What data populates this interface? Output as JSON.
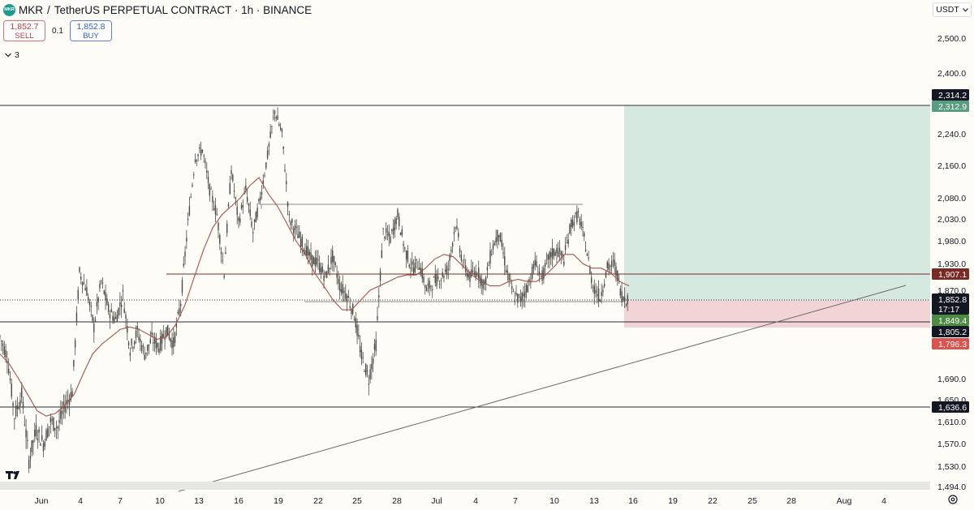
{
  "header": {
    "symbol": "MKR",
    "separator": "/",
    "title": "TetherUS PERPETUAL CONTRACT · 1h · BINANCE",
    "logo_text": "MKR"
  },
  "trade": {
    "sell_price": "1,852.7",
    "sell_label": "SELL",
    "quantity": "0.1",
    "buy_price": "1,852.8",
    "buy_label": "BUY"
  },
  "indicators_count": "3",
  "currency": "USDT",
  "icons": {
    "chevron_down": "chevron-down-icon",
    "settings": "settings-icon",
    "logo": "tradingview-logo"
  },
  "colors": {
    "background": "#fefcf6",
    "candle": "#4a4a44",
    "moving_average": "#a6514f",
    "take_profit_zone": "#d5e9e1",
    "stop_loss_zone": "#f2d3d6",
    "take_profit_label": "#5a9c80",
    "stop_label": "#d9534f",
    "entry_label": "#4d8b45",
    "resistance_label": "#7a2a26"
  },
  "chart_data": {
    "type": "candlestick",
    "title": "",
    "symbol": "MKR/USDT Perpetual",
    "timeframe": "1h",
    "price_axis": {
      "ticks": [
        "2,500.0",
        "2,400.0",
        "2,314.2",
        "2,240.0",
        "2,160.0",
        "2,080.0",
        "2,030.0",
        "1,980.0",
        "1,930.0",
        "1,870.0",
        "1,690.0",
        "1,650.0",
        "1,610.0",
        "1,570.0",
        "1,530.0",
        "1,494.0"
      ],
      "range": [
        1490,
        2540
      ]
    },
    "date_axis": {
      "ticks": [
        "Jun",
        "4",
        "7",
        "10",
        "13",
        "16",
        "19",
        "22",
        "25",
        "28",
        "Jul",
        "4",
        "7",
        "10",
        "13",
        "16",
        "19",
        "22",
        "25",
        "28",
        "Aug",
        "4"
      ]
    },
    "price_labels": [
      {
        "name": "resistance-high",
        "value": "2,314.2"
      },
      {
        "name": "take-profit",
        "value": "2,312.9"
      },
      {
        "name": "resistance-mid",
        "value": "1,907.1"
      },
      {
        "name": "current-price",
        "value": "1,852.8"
      },
      {
        "name": "countdown",
        "value": "17:17"
      },
      {
        "name": "entry",
        "value": "1,849.4"
      },
      {
        "name": "support",
        "value": "1,805.2"
      },
      {
        "name": "stop-loss",
        "value": "1,796.3"
      },
      {
        "name": "support-low",
        "value": "1,636.6"
      }
    ],
    "horizontal_levels": [
      2314.2,
      1907.1,
      1805.2,
      1636.6
    ],
    "range_box_top": 2064,
    "long_position": {
      "entry": 1849.4,
      "target": 2312.9,
      "stop": 1796.3
    },
    "price_path_close": [
      1775,
      1735,
      1620,
      1660,
      1540,
      1595,
      1570,
      1610,
      1600,
      1640,
      1665,
      1910,
      1870,
      1795,
      1890,
      1830,
      1810,
      1860,
      1750,
      1785,
      1740,
      1770,
      1755,
      1790,
      1760,
      1845,
      2020,
      2180,
      2200,
      2100,
      2040,
      1910,
      2150,
      2020,
      2100,
      2000,
      2080,
      2185,
      2300,
      2240,
      2030,
      2000,
      1970,
      1940,
      1930,
      1900,
      1945,
      1880,
      1860,
      1820,
      1735,
      1690,
      1760,
      2000,
      1985,
      2040,
      1960,
      1920,
      1930,
      1870,
      1890,
      1900,
      1920,
      2020,
      1930,
      1900,
      1915,
      1880,
      1960,
      2000,
      1920,
      1860,
      1850,
      1880,
      1930,
      1900,
      1945,
      1960,
      1940,
      2020,
      2040,
      1970,
      1880,
      1855,
      1920,
      1930,
      1860,
      1850
    ],
    "moving_average": [
      1740,
      1720,
      1690,
      1660,
      1630,
      1620,
      1625,
      1640,
      1660,
      1700,
      1740,
      1760,
      1775,
      1790,
      1795,
      1790,
      1780,
      1770,
      1775,
      1800,
      1840,
      1900,
      1960,
      2010,
      2040,
      2060,
      2080,
      2110,
      2130,
      2090,
      2060,
      2020,
      1980,
      1950,
      1910,
      1880,
      1850,
      1830,
      1830,
      1850,
      1870,
      1880,
      1890,
      1900,
      1905,
      1905,
      1920,
      1940,
      1950,
      1945,
      1925,
      1905,
      1890,
      1880,
      1880,
      1890,
      1895,
      1890,
      1890,
      1905,
      1925,
      1950,
      1950,
      1930,
      1920,
      1920,
      1910,
      1890,
      1880
    ]
  }
}
